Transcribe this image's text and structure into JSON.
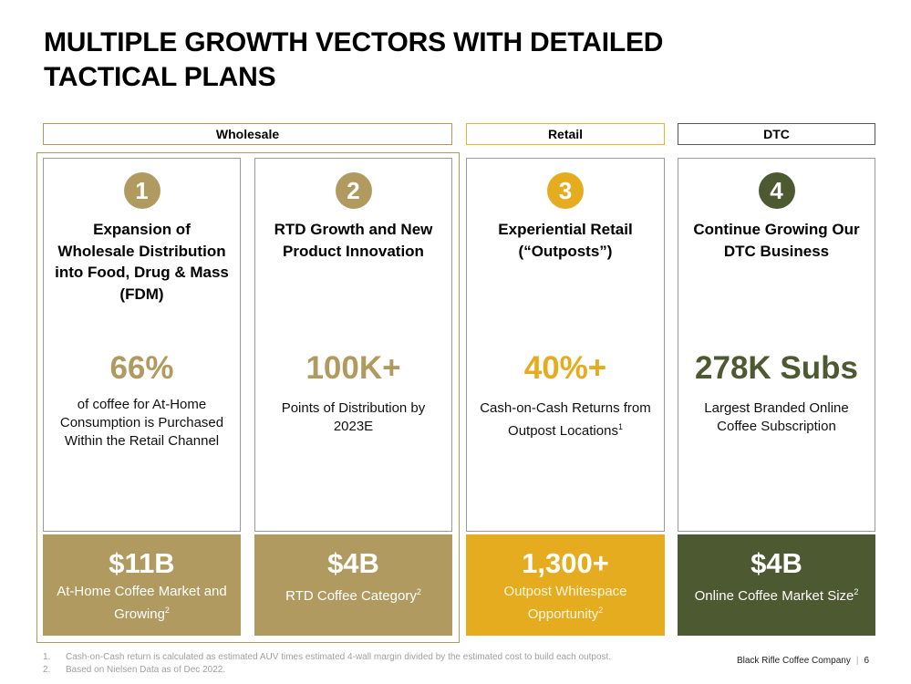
{
  "title": "MULTIPLE GROWTH VECTORS WITH DETAILED TACTICAL PLANS",
  "headers": {
    "wholesale": "Wholesale",
    "retail": "Retail",
    "dtc": "DTC"
  },
  "cards": [
    {
      "number": "1",
      "heading": "Expansion of Wholesale Distribution into Food, Drug & Mass (FDM)",
      "stat": "66%",
      "desc": "of coffee for At-Home Consumption is Purchased Within the Retail Channel",
      "desc_sup": "",
      "footer_big": "$11B",
      "footer_sub": "At-Home Coffee Market and Growing",
      "footer_sup": "2"
    },
    {
      "number": "2",
      "heading": "RTD Growth and New Product Innovation",
      "stat": "100K+",
      "desc": "Points of Distribution by 2023E",
      "desc_sup": "",
      "footer_big": "$4B",
      "footer_sub": "RTD Coffee Category",
      "footer_sup": "2"
    },
    {
      "number": "3",
      "heading": "Experiential Retail (“Outposts”)",
      "stat": "40%+",
      "desc": "Cash-on-Cash Returns from Outpost Locations",
      "desc_sup": "1",
      "footer_big": "1,300+",
      "footer_sub": "Outpost Whitespace Opportunity",
      "footer_sup": "2"
    },
    {
      "number": "4",
      "heading": "Continue Growing Our DTC Business",
      "stat": "278K Subs",
      "desc": "Largest Branded Online Coffee Subscription",
      "desc_sup": "",
      "footer_big": "$4B",
      "footer_sub": "Online Coffee Market Size",
      "footer_sup": "2"
    }
  ],
  "footnotes": [
    {
      "num": "1.",
      "text": "Cash-on-Cash return is calculated as estimated AUV times estimated 4-wall margin divided by the estimated cost to build each outpost."
    },
    {
      "num": "2.",
      "text": "Based on Nielsen Data as of Dec 2022."
    }
  ],
  "company": "Black Rifle Coffee Company",
  "page_number": "6",
  "colors": {
    "tan": "#b09a60",
    "gold": "#e6ac20",
    "olive": "#4d5930"
  }
}
